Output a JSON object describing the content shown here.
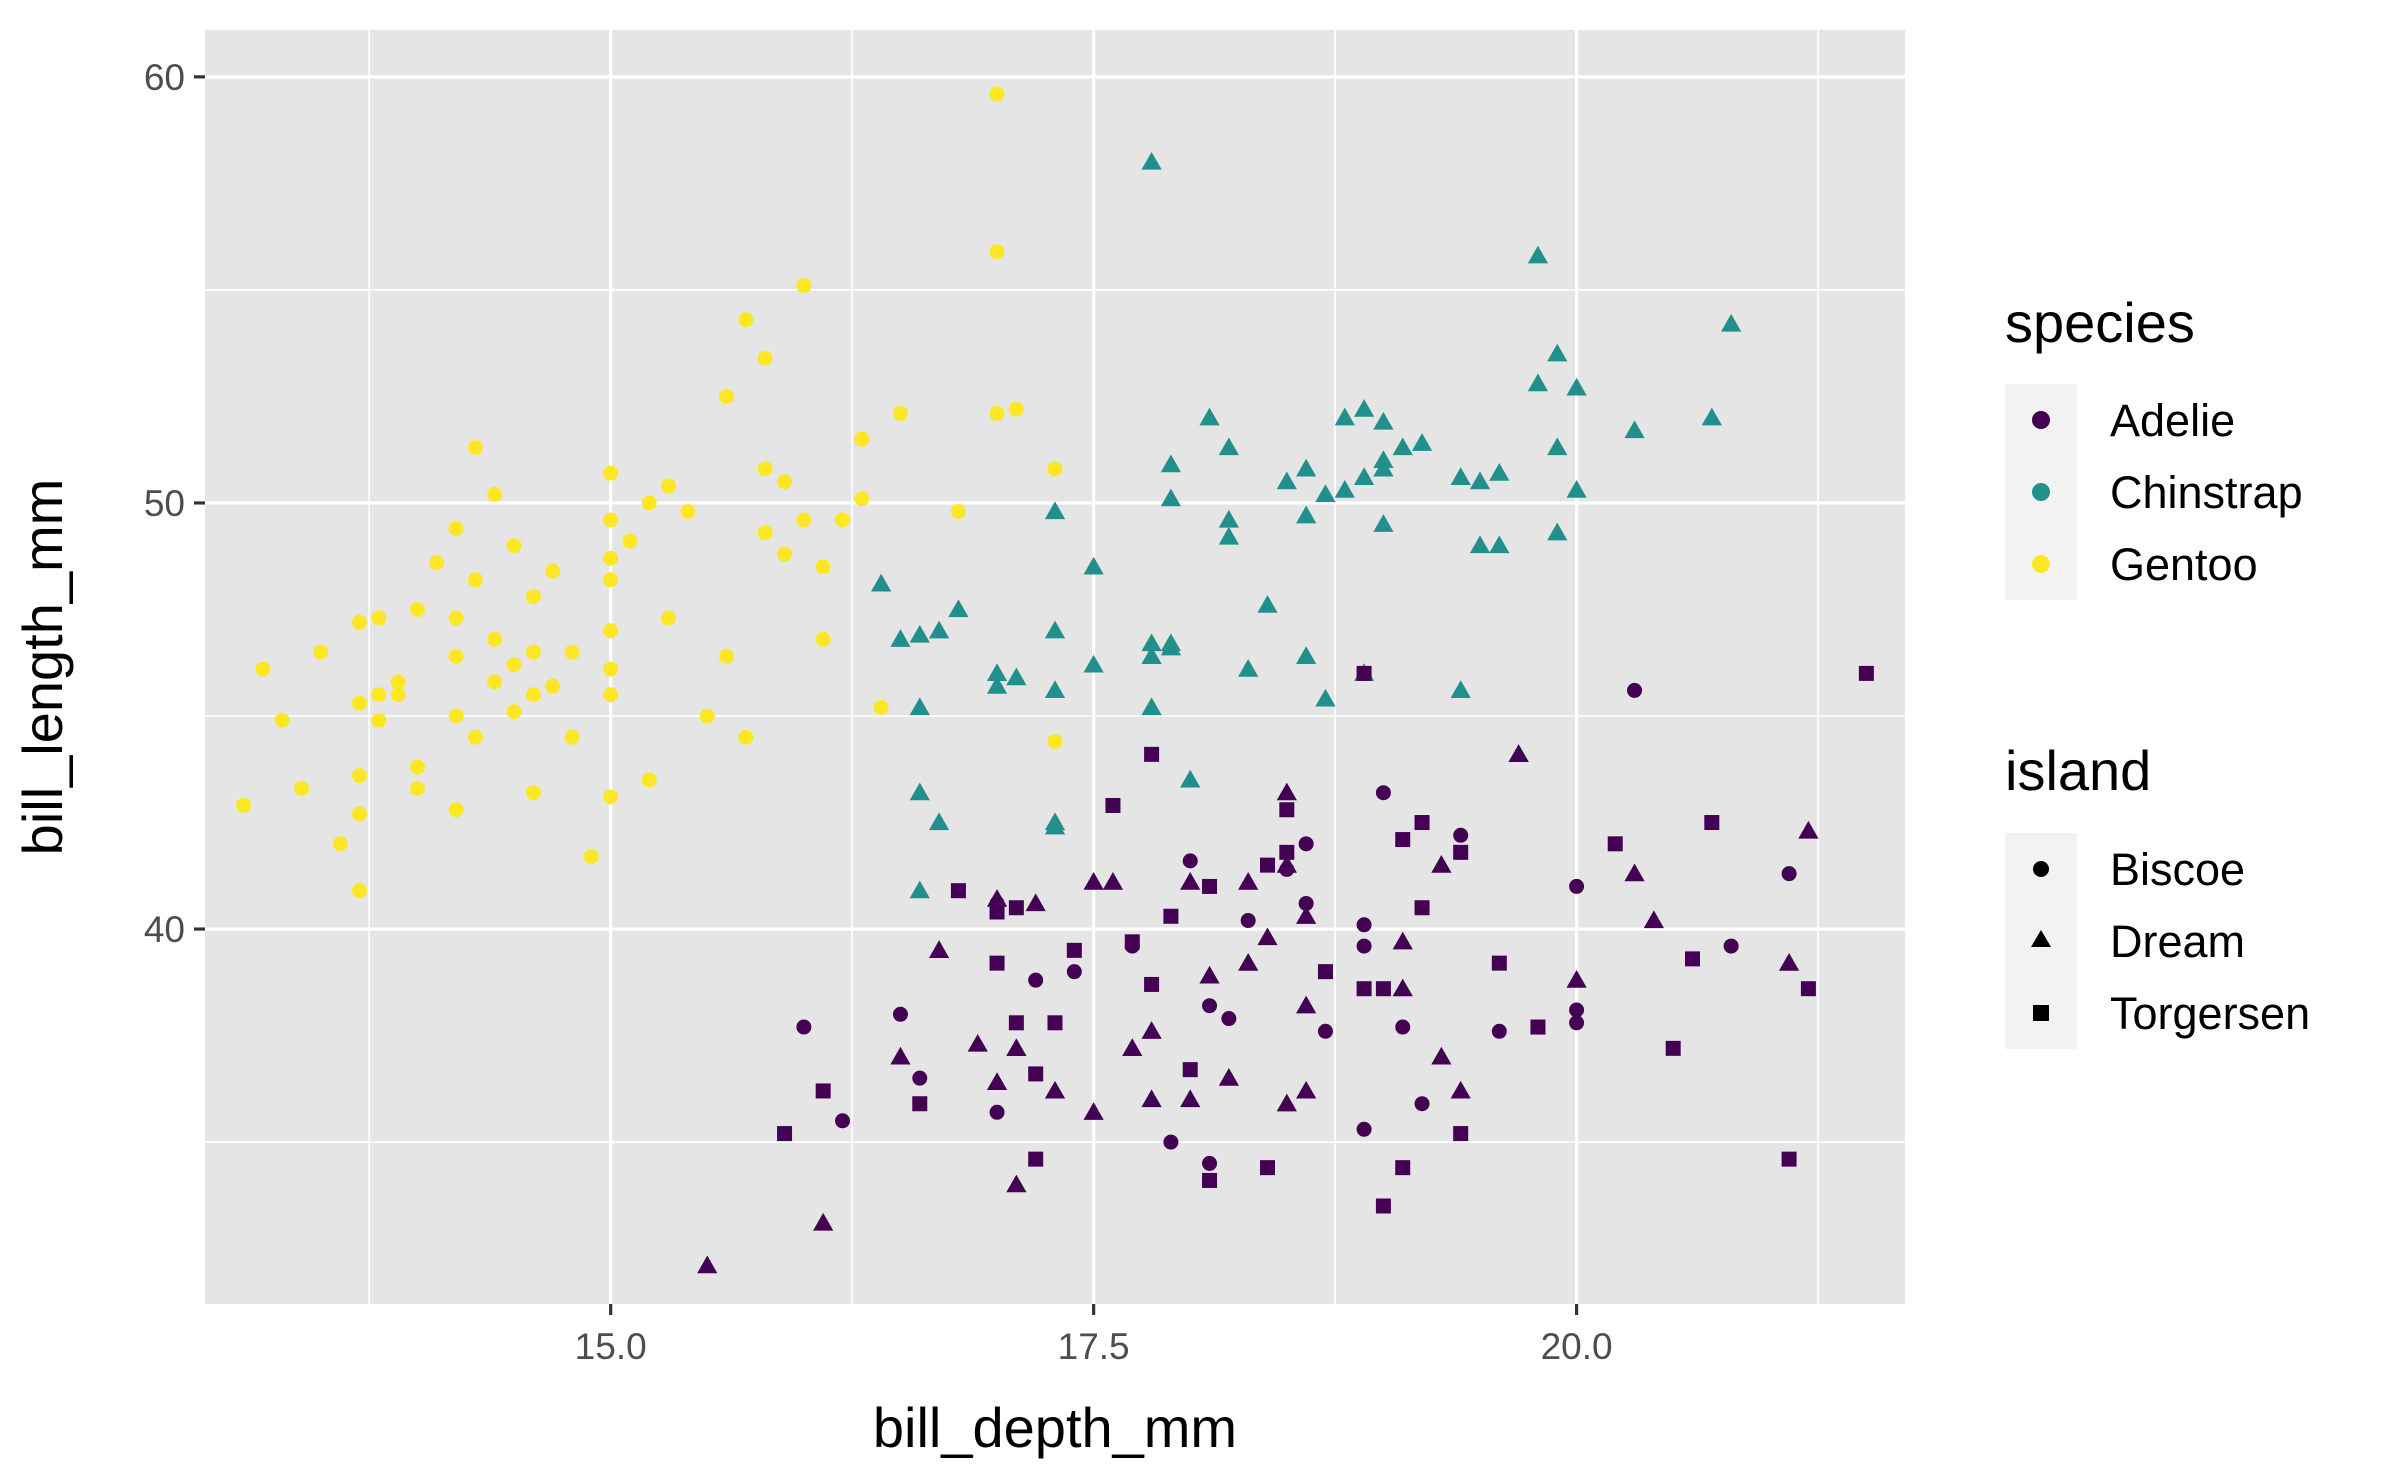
{
  "chart_data": {
    "type": "scatter",
    "xlabel": "bill_depth_mm",
    "ylabel": "bill_length_mm",
    "xlim": [
      12.9,
      21.7
    ],
    "ylim": [
      31.2,
      61.1
    ],
    "x_ticks": [
      15.0,
      17.5,
      20.0
    ],
    "x_tick_labels": [
      "15.0",
      "17.5",
      "20.0"
    ],
    "y_ticks": [
      40,
      50,
      60
    ],
    "y_tick_labels": [
      "40",
      "50",
      "60"
    ],
    "grid": true,
    "panel_background": "#e5e5e5",
    "legend_placement": "right",
    "legend": {
      "species": {
        "title": "species",
        "entries": [
          {
            "label": "Adelie",
            "color": "#440154"
          },
          {
            "label": "Chinstrap",
            "color": "#21908c"
          },
          {
            "label": "Gentoo",
            "color": "#fde725"
          }
        ]
      },
      "island": {
        "title": "island",
        "entries": [
          {
            "label": "Biscoe",
            "shape": "circle"
          },
          {
            "label": "Dream",
            "shape": "triangle"
          },
          {
            "label": "Torgersen",
            "shape": "square"
          }
        ]
      }
    },
    "series": [
      {
        "name": "Gentoo",
        "species": "Gentoo",
        "island": "Biscoe",
        "color": "#fde725",
        "shape": "circle",
        "x": [
          13.1,
          13.2,
          13.3,
          13.4,
          13.5,
          13.6,
          13.7,
          13.7,
          13.7,
          13.7,
          13.7,
          13.8,
          13.8,
          13.8,
          13.9,
          13.9,
          14.0,
          14.0,
          14.0,
          14.1,
          14.2,
          14.2,
          14.2,
          14.2,
          14.2,
          14.3,
          14.3,
          14.3,
          14.4,
          14.4,
          14.4,
          14.5,
          14.5,
          14.5,
          14.6,
          14.6,
          14.6,
          14.6,
          14.7,
          14.7,
          14.8,
          14.8,
          14.9,
          15.0,
          15.0,
          15.0,
          15.0,
          15.0,
          15.0,
          15.0,
          15.0,
          15.1,
          15.2,
          15.2,
          15.3,
          15.3,
          15.4,
          15.5,
          15.6,
          15.6,
          15.7,
          15.7,
          15.8,
          15.8,
          15.8,
          15.9,
          15.9,
          16.0,
          16.0,
          16.1,
          16.1,
          16.2,
          16.3,
          16.3,
          16.4,
          16.5,
          16.8,
          17.0,
          17.0,
          17.0,
          17.1,
          17.3,
          17.3
        ],
        "y": [
          42.9,
          46.1,
          44.9,
          43.3,
          46.5,
          42.0,
          47.2,
          45.3,
          43.6,
          42.7,
          40.9,
          47.3,
          45.5,
          44.9,
          45.8,
          45.5,
          47.5,
          43.8,
          43.3,
          48.6,
          49.4,
          47.3,
          46.4,
          45.0,
          42.8,
          51.3,
          48.2,
          44.5,
          50.2,
          46.8,
          45.8,
          49.0,
          46.2,
          45.1,
          47.8,
          46.5,
          45.5,
          43.2,
          48.4,
          45.7,
          46.5,
          44.5,
          41.7,
          50.7,
          49.6,
          48.7,
          48.2,
          47.0,
          45.5,
          43.1,
          46.1,
          49.1,
          50.0,
          43.5,
          50.4,
          47.3,
          49.8,
          45.0,
          52.5,
          46.4,
          54.3,
          44.5,
          53.4,
          50.8,
          49.3,
          50.5,
          48.8,
          55.1,
          49.6,
          48.5,
          46.8,
          49.6,
          51.5,
          50.1,
          45.2,
          52.1,
          49.8,
          59.6,
          55.9,
          52.1,
          52.2,
          50.8,
          44.4
        ]
      },
      {
        "name": "Chinstrap",
        "species": "Chinstrap",
        "island": "Dream",
        "color": "#21908c",
        "shape": "triangle",
        "x": [
          16.4,
          16.5,
          16.6,
          16.6,
          16.6,
          16.6,
          16.7,
          16.7,
          16.8,
          17.0,
          17.0,
          17.1,
          17.3,
          17.3,
          17.3,
          17.3,
          17.3,
          17.5,
          17.5,
          17.8,
          17.8,
          17.8,
          17.8,
          17.9,
          17.9,
          17.9,
          17.9,
          18.0,
          18.1,
          18.2,
          18.2,
          18.2,
          18.3,
          18.4,
          18.5,
          18.6,
          18.6,
          18.6,
          18.7,
          18.7,
          18.8,
          18.8,
          18.9,
          18.9,
          18.9,
          19.0,
          19.0,
          19.0,
          19.0,
          19.1,
          19.2,
          19.4,
          19.4,
          19.5,
          19.5,
          19.6,
          19.6,
          19.7,
          19.8,
          19.8,
          19.9,
          19.9,
          19.9,
          20.0,
          20.0,
          20.3,
          20.7,
          20.8
        ],
        "y": [
          48.1,
          46.8,
          46.9,
          45.2,
          43.2,
          40.9,
          47.0,
          42.5,
          47.5,
          46.0,
          45.7,
          45.9,
          49.8,
          47.0,
          45.6,
          42.5,
          42.4,
          48.5,
          46.2,
          58.0,
          46.7,
          46.4,
          45.2,
          50.9,
          50.1,
          46.6,
          46.7,
          43.5,
          52.0,
          51.3,
          49.6,
          49.2,
          46.1,
          47.6,
          50.5,
          50.8,
          49.7,
          46.4,
          50.2,
          45.4,
          52.0,
          50.3,
          52.2,
          50.6,
          46.0,
          51.9,
          51.0,
          50.8,
          49.5,
          51.3,
          51.4,
          50.6,
          45.6,
          49.0,
          50.5,
          49.0,
          50.7,
          44.1,
          55.8,
          52.8,
          53.5,
          51.3,
          49.3,
          52.7,
          50.3,
          51.7,
          52.0,
          54.2
        ]
      },
      {
        "name": "Adelie",
        "species": "Adelie",
        "island": "Biscoe",
        "color": "#440154",
        "shape": "circle",
        "x": [
          16.0,
          16.2,
          16.5,
          16.6,
          17.0,
          17.0,
          17.2,
          17.4,
          17.7,
          17.9,
          18.0,
          18.1,
          18.1,
          18.2,
          18.3,
          18.5,
          18.6,
          18.6,
          18.7,
          18.9,
          18.9,
          18.9,
          19.0,
          19.1,
          19.2,
          19.4,
          19.6,
          20.0,
          20.0,
          20.0,
          20.3,
          20.8,
          21.1
        ],
        "y": [
          37.7,
          35.5,
          38.0,
          36.5,
          35.7,
          40.6,
          38.8,
          39.0,
          39.6,
          35.0,
          41.6,
          38.2,
          34.5,
          37.9,
          40.2,
          41.4,
          42.0,
          40.6,
          37.6,
          39.6,
          40.1,
          35.3,
          43.2,
          37.7,
          35.9,
          42.2,
          37.6,
          41.0,
          38.1,
          37.8,
          45.6,
          39.6,
          41.3
        ]
      },
      {
        "name": "Adelie",
        "species": "Adelie",
        "island": "Dream",
        "color": "#440154",
        "shape": "triangle",
        "x": [
          15.5,
          16.1,
          16.5,
          16.7,
          16.9,
          17.0,
          17.0,
          17.1,
          17.1,
          17.2,
          17.3,
          17.5,
          17.5,
          17.6,
          17.7,
          17.8,
          17.8,
          18.0,
          18.0,
          18.1,
          18.2,
          18.3,
          18.3,
          18.4,
          18.5,
          18.5,
          18.5,
          18.6,
          18.6,
          18.6,
          19.1,
          19.1,
          19.3,
          19.3,
          19.4,
          19.7,
          20.0,
          20.3,
          20.4,
          21.1,
          21.2
        ],
        "y": [
          32.1,
          33.1,
          37.0,
          39.5,
          37.3,
          40.7,
          36.4,
          34.0,
          37.2,
          40.6,
          36.2,
          41.1,
          35.7,
          41.1,
          37.2,
          36.0,
          37.6,
          41.1,
          36.0,
          38.9,
          36.5,
          41.1,
          39.2,
          39.8,
          43.2,
          41.5,
          35.9,
          36.2,
          38.2,
          40.3,
          39.7,
          38.6,
          41.5,
          37.0,
          36.2,
          44.1,
          38.8,
          41.3,
          40.2,
          39.2,
          42.3
        ]
      },
      {
        "name": "Adelie",
        "species": "Adelie",
        "island": "Torgersen",
        "color": "#440154",
        "shape": "square",
        "x": [
          15.9,
          16.1,
          16.6,
          16.8,
          17.0,
          17.0,
          17.1,
          17.1,
          17.2,
          17.2,
          17.3,
          17.4,
          17.6,
          17.7,
          17.8,
          17.8,
          17.9,
          18.0,
          18.1,
          18.1,
          18.4,
          18.4,
          18.5,
          18.5,
          18.7,
          18.9,
          18.9,
          19.0,
          19.0,
          19.1,
          19.1,
          19.2,
          19.2,
          19.4,
          19.4,
          19.6,
          19.8,
          20.2,
          20.5,
          20.6,
          20.7,
          21.1,
          21.2,
          21.5
        ],
        "y": [
          35.2,
          36.2,
          35.9,
          40.9,
          39.2,
          40.4,
          40.5,
          37.8,
          36.6,
          34.6,
          37.8,
          39.5,
          42.9,
          39.7,
          44.1,
          38.7,
          40.3,
          36.7,
          41.0,
          34.1,
          41.5,
          34.4,
          42.8,
          41.8,
          39.0,
          46.0,
          38.6,
          38.6,
          33.5,
          42.1,
          34.4,
          42.5,
          40.5,
          41.8,
          35.2,
          39.2,
          37.7,
          42.0,
          37.2,
          39.3,
          42.5,
          34.6,
          38.6,
          46.0
        ]
      }
    ]
  }
}
